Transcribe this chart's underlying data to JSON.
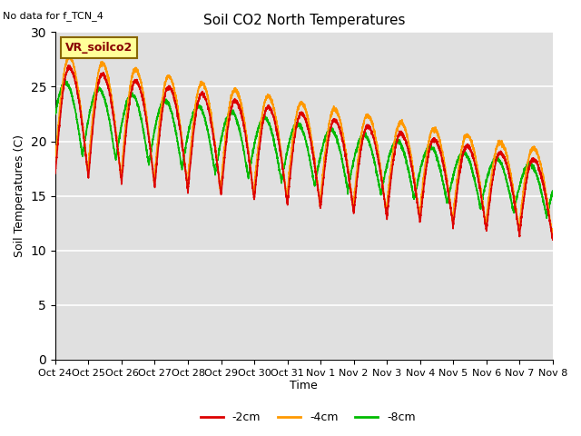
{
  "title": "Soil CO2 North Temperatures",
  "ylabel": "Soil Temperatures (C)",
  "xlabel": "Time",
  "no_data_text": "No data for f_TCN_4",
  "sensor_label": "VR_soilco2",
  "ylim": [
    0,
    30
  ],
  "yticks": [
    0,
    5,
    10,
    15,
    20,
    25,
    30
  ],
  "colors": {
    "2cm": "#dd0000",
    "4cm": "#ff9900",
    "8cm": "#00bb00"
  },
  "legend_labels": [
    "-2cm",
    "-4cm",
    "-8cm"
  ],
  "background_color": "#e0e0e0",
  "xtick_labels": [
    "Oct 24",
    "Oct 25",
    "Oct 26",
    "Oct 27",
    "Oct 28",
    "Oct 29",
    "Oct 30",
    "Oct 31",
    "Nov 1",
    "Nov 2",
    "Nov 3",
    "Nov 4",
    "Nov 5",
    "Nov 6",
    "Nov 7",
    "Nov 8"
  ],
  "num_days": 15,
  "samples_per_day": 288
}
